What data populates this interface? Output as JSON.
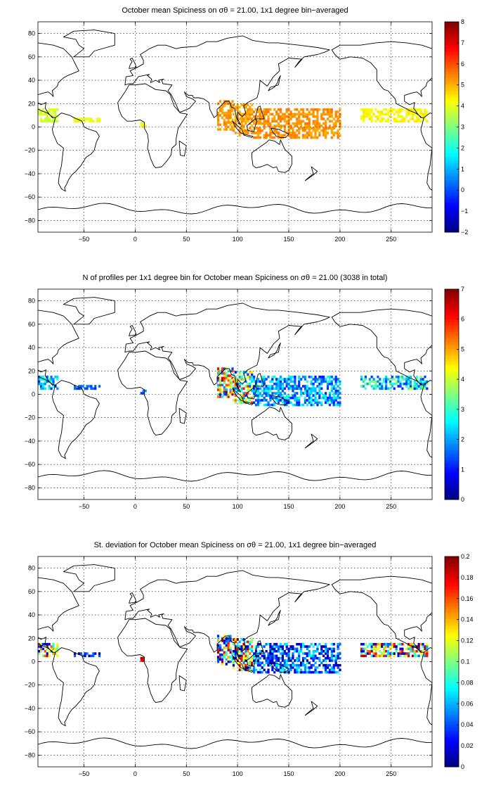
{
  "chart_data": [
    {
      "type": "heatmap",
      "title": "October mean Spiciness on σθ = 21.00, 1x1 degree bin−averaged",
      "xlim": [
        -95,
        290
      ],
      "ylim": [
        -90,
        90
      ],
      "xticks": [
        -50,
        0,
        50,
        100,
        150,
        200,
        250
      ],
      "yticks": [
        80,
        60,
        40,
        20,
        0,
        -20,
        -40,
        -60,
        -80
      ],
      "grid": true,
      "colorbar": {
        "min": -2,
        "max": 8,
        "ticks": [
          -2,
          -1,
          0,
          1,
          2,
          3,
          4,
          5,
          6,
          7,
          8
        ]
      },
      "regions": [
        {
          "lon_range": [
            -95,
            -75
          ],
          "lat_range": [
            4,
            15
          ],
          "value_range": [
            3.5,
            4.2
          ]
        },
        {
          "lon_range": [
            -60,
            -35
          ],
          "lat_range": [
            4,
            8
          ],
          "value_range": [
            3.8,
            4.5
          ]
        },
        {
          "lon_range": [
            5,
            10
          ],
          "lat_range": [
            0,
            4
          ],
          "value_range": [
            3.5,
            4.2
          ]
        },
        {
          "lon_range": [
            80,
            95
          ],
          "lat_range": [
            -3,
            22
          ],
          "value_range": [
            5.0,
            5.5
          ]
        },
        {
          "lon_range": [
            95,
            115
          ],
          "lat_range": [
            -8,
            20
          ],
          "value_range": [
            4.8,
            5.6
          ]
        },
        {
          "lon_range": [
            115,
            200
          ],
          "lat_range": [
            -10,
            15
          ],
          "value_range": [
            5.0,
            5.6
          ]
        },
        {
          "lon_range": [
            220,
            285
          ],
          "lat_range": [
            4,
            16
          ],
          "value_range": [
            4.0,
            4.6
          ]
        }
      ]
    },
    {
      "type": "heatmap",
      "title": "N of profiles per 1x1 degree bin for October mean Spiciness on σθ = 21.00 (3038 in total)",
      "xlim": [
        -95,
        290
      ],
      "ylim": [
        -90,
        90
      ],
      "xticks": [
        -50,
        0,
        50,
        100,
        150,
        200,
        250
      ],
      "yticks": [
        80,
        60,
        40,
        20,
        0,
        -20,
        -40,
        -60,
        -80
      ],
      "grid": true,
      "colorbar": {
        "min": 0,
        "max": 7,
        "ticks": [
          0,
          1,
          2,
          3,
          4,
          5,
          6,
          7
        ]
      },
      "total_profiles": 3038,
      "regions": [
        {
          "lon_range": [
            -95,
            -75
          ],
          "lat_range": [
            4,
            15
          ],
          "value_range": [
            1,
            3
          ]
        },
        {
          "lon_range": [
            -60,
            -35
          ],
          "lat_range": [
            4,
            8
          ],
          "value_range": [
            1,
            2
          ]
        },
        {
          "lon_range": [
            5,
            10
          ],
          "lat_range": [
            0,
            4
          ],
          "value_range": [
            1,
            2
          ]
        },
        {
          "lon_range": [
            80,
            95
          ],
          "lat_range": [
            -3,
            22
          ],
          "value_range": [
            1,
            7
          ]
        },
        {
          "lon_range": [
            95,
            115
          ],
          "lat_range": [
            -8,
            20
          ],
          "value_range": [
            1,
            6
          ]
        },
        {
          "lon_range": [
            115,
            200
          ],
          "lat_range": [
            -10,
            15
          ],
          "value_range": [
            1,
            3
          ]
        },
        {
          "lon_range": [
            220,
            285
          ],
          "lat_range": [
            4,
            16
          ],
          "value_range": [
            1,
            4
          ]
        }
      ]
    },
    {
      "type": "heatmap",
      "title": "St. deviation for October mean Spiciness on σθ = 21.00, 1x1 degree bin−averaged",
      "xlim": [
        -95,
        290
      ],
      "ylim": [
        -90,
        90
      ],
      "xticks": [
        -50,
        0,
        50,
        100,
        150,
        200,
        250
      ],
      "yticks": [
        80,
        60,
        40,
        20,
        0,
        -20,
        -40,
        -60,
        -80
      ],
      "grid": true,
      "colorbar": {
        "min": 0,
        "max": 0.2,
        "ticks": [
          0,
          0.02,
          0.04,
          0.06,
          0.08,
          0.1,
          0.12,
          0.14,
          0.16,
          0.18,
          0.2
        ]
      },
      "regions": [
        {
          "lon_range": [
            -95,
            -75
          ],
          "lat_range": [
            4,
            15
          ],
          "value_range": [
            0,
            0.2
          ]
        },
        {
          "lon_range": [
            -60,
            -35
          ],
          "lat_range": [
            4,
            8
          ],
          "value_range": [
            0,
            0.05
          ]
        },
        {
          "lon_range": [
            5,
            10
          ],
          "lat_range": [
            0,
            4
          ],
          "value_range": [
            0.15,
            0.2
          ]
        },
        {
          "lon_range": [
            80,
            95
          ],
          "lat_range": [
            -3,
            22
          ],
          "value_range": [
            0.0,
            0.2
          ]
        },
        {
          "lon_range": [
            95,
            115
          ],
          "lat_range": [
            -8,
            20
          ],
          "value_range": [
            0.0,
            0.2
          ]
        },
        {
          "lon_range": [
            115,
            200
          ],
          "lat_range": [
            -10,
            15
          ],
          "value_range": [
            0.0,
            0.08
          ]
        },
        {
          "lon_range": [
            220,
            285
          ],
          "lat_range": [
            4,
            16
          ],
          "value_range": [
            0.0,
            0.2
          ]
        }
      ]
    }
  ]
}
